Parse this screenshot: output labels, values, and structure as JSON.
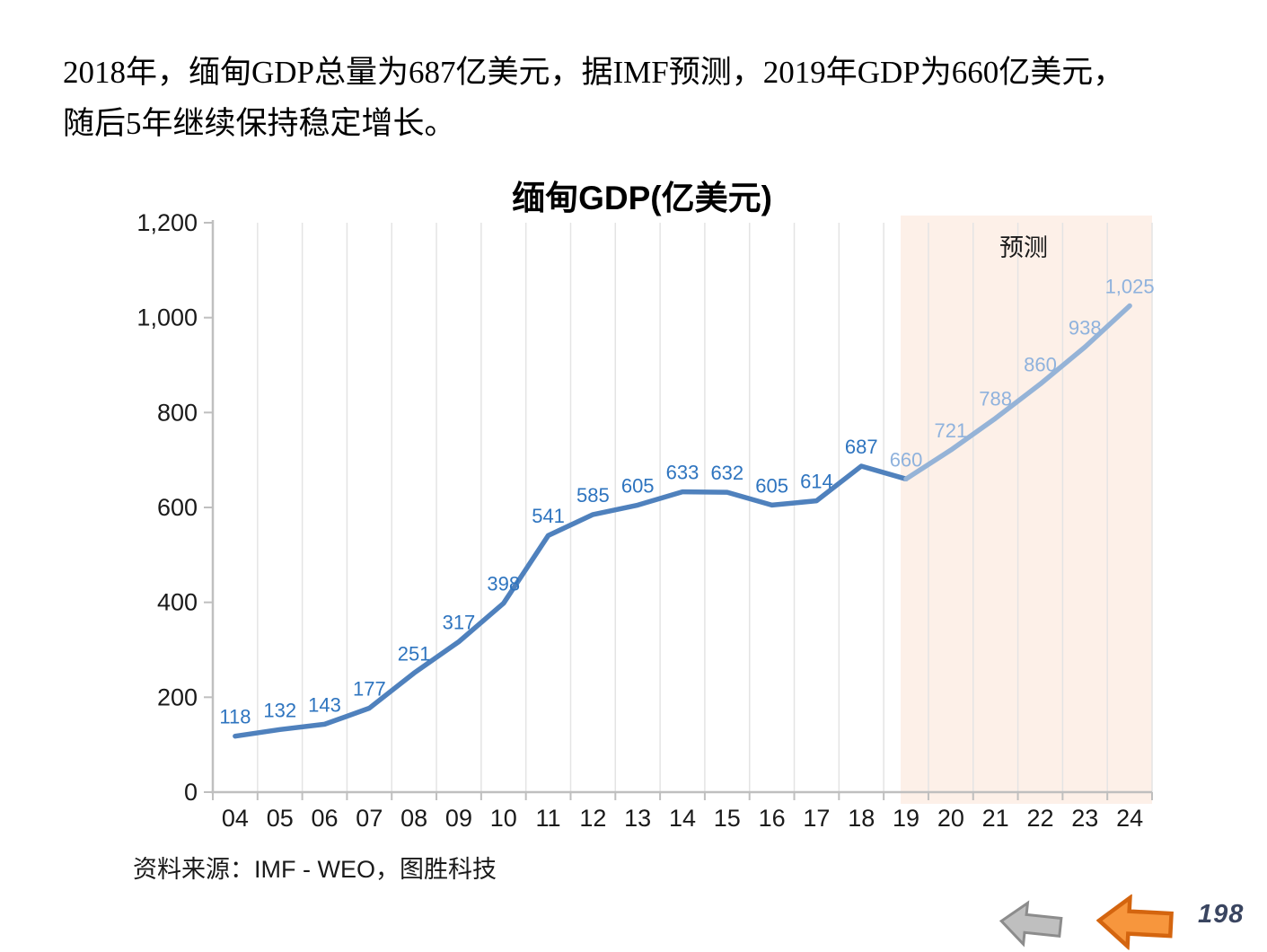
{
  "intro": {
    "lines": [
      "2018年，缅甸GDP总量为687亿美元，据IMF预测，2019年GDP为660亿美元，",
      "随后5年继续保持稳定增长。"
    ]
  },
  "chart_data": {
    "type": "line",
    "title": "缅甸GDP(亿美元)",
    "xlabel": "",
    "ylabel": "",
    "categories": [
      "04",
      "05",
      "06",
      "07",
      "08",
      "09",
      "10",
      "11",
      "12",
      "13",
      "14",
      "15",
      "16",
      "17",
      "18",
      "19",
      "20",
      "21",
      "22",
      "23",
      "24"
    ],
    "values": [
      118,
      132,
      143,
      177,
      251,
      317,
      398,
      541,
      585,
      605,
      633,
      632,
      605,
      614,
      687,
      660,
      721,
      788,
      860,
      938,
      1025
    ],
    "point_labels": [
      "118",
      "132",
      "143",
      "177",
      "251",
      "317",
      "398",
      "541",
      "585",
      "605",
      "633",
      "632",
      "605",
      "614",
      "687",
      "660",
      "721",
      "788",
      "860",
      "938",
      "1,025"
    ],
    "series": [
      {
        "name": "actual",
        "index_range": [
          0,
          15
        ]
      },
      {
        "name": "forecast",
        "index_range": [
          15,
          20
        ]
      }
    ],
    "forecast_start_index": 15,
    "annotation": "预测",
    "ylim": [
      0,
      1200
    ],
    "ytick_step": 200,
    "ytick_labels": [
      "0",
      "200",
      "400",
      "600",
      "800",
      "1,000",
      "1,200"
    ],
    "grid": "vertical-only",
    "legend": "none",
    "colors": {
      "line_actual": "#4f81bd",
      "line_forecast": "#95b3d7",
      "label_actual": "#2e74bf",
      "label_forecast": "#8fb2dd",
      "forecast_band": "#fdf0e8",
      "gridline": "#e4e4e4",
      "axis": "#bfbfbf",
      "tick_text": "#1a1a1a"
    }
  },
  "source": {
    "text": "资料来源：IMF - WEO，图胜科技"
  },
  "nav": {
    "page_number": "198",
    "gray_arrow": {
      "fill": "#bfbfbf",
      "stroke": "#8c8c8c"
    },
    "orange_arrow": {
      "fill": "#f7963d",
      "stroke": "#d4650f"
    }
  }
}
